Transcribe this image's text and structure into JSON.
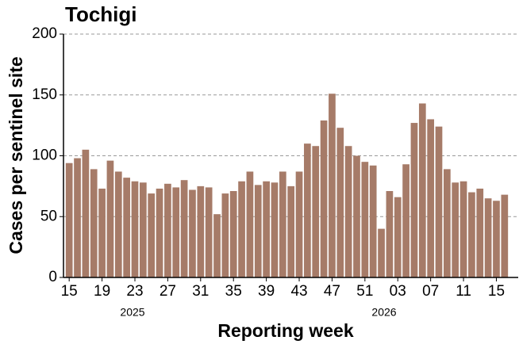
{
  "chart_data": {
    "type": "bar",
    "title": "Tochigi",
    "x_label": "Reporting week",
    "y_label": "Cases per sentinel site",
    "categories": [
      "15",
      null,
      null,
      null,
      "19",
      null,
      null,
      null,
      "23",
      null,
      null,
      null,
      "27",
      null,
      null,
      null,
      "31",
      null,
      null,
      null,
      "35",
      null,
      null,
      null,
      "39",
      null,
      null,
      null,
      "43",
      null,
      null,
      null,
      "47",
      null,
      null,
      null,
      "51",
      null,
      null,
      null,
      "03",
      null,
      null,
      null,
      "07",
      null,
      null,
      null,
      "11",
      null,
      null,
      null,
      "15",
      null
    ],
    "values": [
      94,
      98,
      105,
      89,
      73,
      96,
      87,
      82,
      79,
      78,
      69,
      73,
      77,
      74,
      80,
      72,
      75,
      74,
      52,
      69,
      71,
      79,
      87,
      76,
      79,
      78,
      87,
      75,
      87,
      110,
      108,
      129,
      151,
      123,
      108,
      100,
      95,
      92,
      40,
      71,
      66,
      93,
      127,
      143,
      130,
      124,
      89,
      78,
      79,
      70,
      73,
      65,
      63,
      68
    ],
    "year_labels": [
      "2025",
      "2026"
    ],
    "color": "#a67b68",
    "ylim": [
      0,
      200
    ],
    "yticks": [
      0,
      50,
      100,
      150,
      200
    ],
    "grid": true
  }
}
